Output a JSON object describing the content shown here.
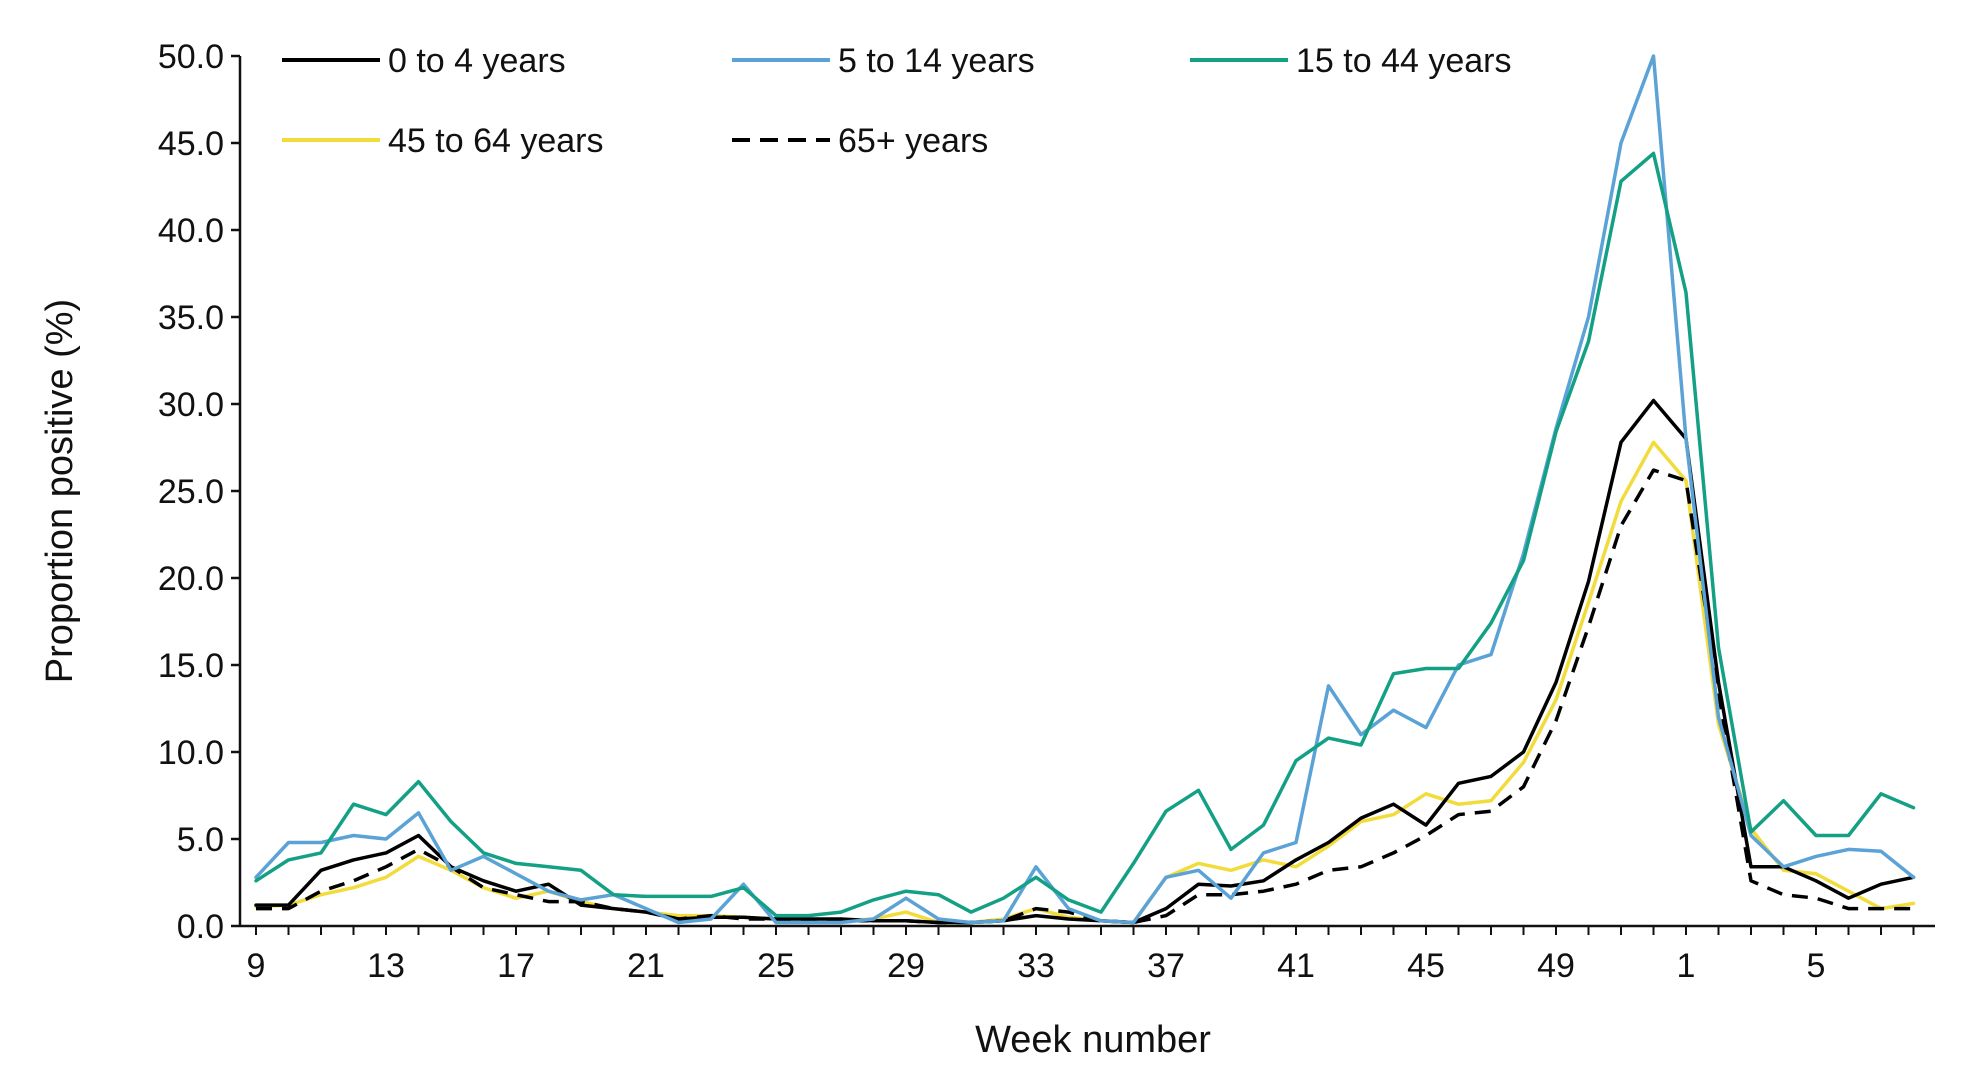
{
  "chart_data": {
    "type": "line",
    "xlabel": "Week number",
    "ylabel": "Proportion positive (%)",
    "ylim": [
      0,
      50
    ],
    "yticks": [
      "0.0",
      "5.0",
      "10.0",
      "15.0",
      "20.0",
      "25.0",
      "30.0",
      "35.0",
      "40.0",
      "45.0",
      "50.0"
    ],
    "x": [
      "9",
      "10",
      "11",
      "12",
      "13",
      "14",
      "15",
      "16",
      "17",
      "18",
      "19",
      "20",
      "21",
      "22",
      "23",
      "24",
      "25",
      "26",
      "27",
      "28",
      "29",
      "30",
      "31",
      "32",
      "33",
      "34",
      "35",
      "36",
      "37",
      "38",
      "39",
      "40",
      "41",
      "42",
      "43",
      "44",
      "45",
      "46",
      "47",
      "48",
      "49",
      "50",
      "51",
      "52",
      "1",
      "2",
      "3",
      "4",
      "5",
      "6",
      "7",
      "8"
    ],
    "xtick_labels": [
      "9",
      "13",
      "17",
      "21",
      "25",
      "29",
      "33",
      "37",
      "41",
      "45",
      "49",
      "1",
      "5"
    ],
    "grid": false,
    "legend_position": "top-left",
    "series": [
      {
        "name": "0 to 4 years",
        "color": "#000000",
        "dash": "solid",
        "values": [
          1.2,
          1.2,
          3.2,
          3.8,
          4.2,
          5.2,
          3.4,
          2.6,
          2.0,
          2.4,
          1.2,
          1.0,
          0.8,
          0.4,
          0.5,
          0.5,
          0.4,
          0.4,
          0.4,
          0.3,
          0.3,
          0.2,
          0.2,
          0.3,
          0.6,
          0.4,
          0.3,
          0.2,
          1.0,
          2.4,
          2.3,
          2.6,
          3.8,
          4.8,
          6.2,
          7.0,
          5.8,
          8.2,
          8.6,
          10.0,
          14.0,
          19.8,
          27.8,
          30.2,
          28.0,
          14.0,
          3.4,
          3.4,
          2.6,
          1.6,
          2.4,
          2.8
        ]
      },
      {
        "name": "5 to 14 years",
        "color": "#5BA3D6",
        "dash": "solid",
        "values": [
          2.8,
          4.8,
          4.8,
          5.2,
          5.0,
          6.5,
          3.2,
          4.0,
          3.0,
          2.0,
          1.5,
          1.8,
          1.0,
          0.2,
          0.4,
          2.4,
          0.2,
          0.2,
          0.2,
          0.4,
          1.6,
          0.4,
          0.2,
          0.3,
          3.4,
          1.0,
          0.3,
          0.2,
          2.8,
          3.2,
          1.6,
          4.2,
          4.8,
          13.8,
          11.0,
          12.4,
          11.4,
          15.0,
          15.6,
          21.4,
          28.6,
          35.0,
          45.0,
          50.0,
          28.0,
          12.0,
          5.2,
          3.4,
          4.0,
          4.4,
          4.3,
          2.8
        ]
      },
      {
        "name": "15 to 44 years",
        "color": "#14A085",
        "dash": "solid",
        "values": [
          2.6,
          3.8,
          4.2,
          7.0,
          6.4,
          8.3,
          6.0,
          4.2,
          3.6,
          3.4,
          3.2,
          1.8,
          1.7,
          1.7,
          1.7,
          2.2,
          0.6,
          0.6,
          0.8,
          1.5,
          2.0,
          1.8,
          0.8,
          1.6,
          2.8,
          1.5,
          0.8,
          3.6,
          6.6,
          7.8,
          4.4,
          5.8,
          9.5,
          10.8,
          10.4,
          14.5,
          14.8,
          14.8,
          17.4,
          21.0,
          28.4,
          33.6,
          42.8,
          44.4,
          36.4,
          16.0,
          5.4,
          7.2,
          5.2,
          5.2,
          7.6,
          6.8
        ]
      },
      {
        "name": "45 to 64 years",
        "color": "#F2DC3C",
        "dash": "solid",
        "values": [
          1.1,
          1.2,
          1.8,
          2.2,
          2.8,
          4.0,
          3.2,
          2.2,
          1.6,
          2.0,
          1.4,
          1.0,
          0.8,
          0.6,
          0.6,
          0.5,
          0.4,
          0.4,
          0.3,
          0.4,
          0.8,
          0.2,
          0.2,
          0.4,
          1.0,
          0.5,
          0.3,
          0.2,
          2.8,
          3.6,
          3.2,
          3.8,
          3.4,
          4.6,
          6.0,
          6.4,
          7.6,
          7.0,
          7.2,
          9.4,
          13.0,
          18.6,
          24.4,
          27.8,
          25.6,
          11.6,
          5.6,
          3.2,
          3.0,
          2.0,
          1.0,
          1.3
        ]
      },
      {
        "name": "65+ years",
        "color": "#000000",
        "dash": "dashed",
        "values": [
          1.0,
          1.0,
          2.0,
          2.6,
          3.4,
          4.4,
          3.4,
          2.2,
          1.8,
          1.4,
          1.4,
          1.0,
          0.8,
          0.4,
          0.6,
          0.4,
          0.4,
          0.3,
          0.3,
          0.3,
          0.3,
          0.2,
          0.2,
          0.3,
          1.0,
          0.8,
          0.3,
          0.2,
          0.6,
          1.8,
          1.8,
          2.0,
          2.4,
          3.2,
          3.4,
          4.2,
          5.2,
          6.4,
          6.6,
          8.0,
          11.8,
          17.2,
          23.0,
          26.2,
          25.6,
          13.4,
          2.6,
          1.8,
          1.6,
          1.0,
          1.0,
          1.0
        ]
      }
    ]
  }
}
